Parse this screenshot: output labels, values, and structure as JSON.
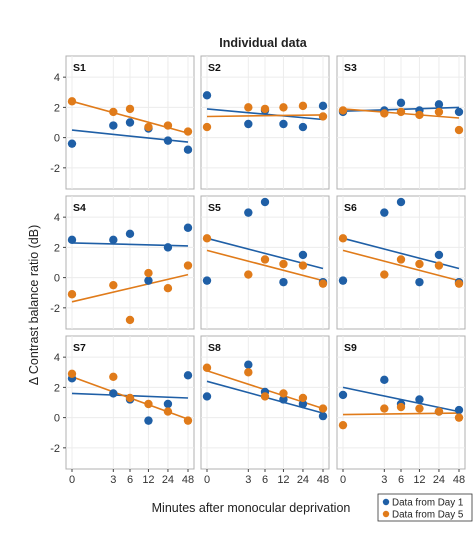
{
  "chart_data": {
    "type": "scatter",
    "title": "Individual data",
    "xlabel": "Minutes after monocular deprivation",
    "ylabel": "Δ Contrast balance ratio (dB)",
    "ylim": [
      -3.4,
      5.4
    ],
    "y_ticks": [
      -2,
      0,
      2,
      4
    ],
    "x_ticks": [
      0,
      3,
      6,
      12,
      24,
      48
    ],
    "x_tick_labels": [
      "0",
      "3",
      "6",
      "12",
      "24",
      "48"
    ],
    "x_scale": "log(x+1)",
    "grid": true,
    "legend_position": "bottom-right",
    "series_legend": [
      {
        "name": "Data from Day 1",
        "color": "#1f5fa6"
      },
      {
        "name": "Data from Day 5",
        "color": "#e07b1a"
      }
    ],
    "panels": [
      {
        "label": "S1",
        "day1": [
          [
            0,
            -0.4
          ],
          [
            3,
            0.8
          ],
          [
            6,
            1.0
          ],
          [
            12,
            0.6
          ],
          [
            24,
            -0.2
          ],
          [
            48,
            -0.8
          ]
        ],
        "day1_fit": [
          [
            0,
            0.5
          ],
          [
            48,
            -0.3
          ]
        ],
        "day5": [
          [
            0,
            2.4
          ],
          [
            3,
            1.7
          ],
          [
            6,
            1.9
          ],
          [
            12,
            0.7
          ],
          [
            24,
            0.8
          ],
          [
            48,
            0.4
          ]
        ],
        "day5_fit": [
          [
            0,
            2.4
          ],
          [
            48,
            0.3
          ]
        ]
      },
      {
        "label": "S2",
        "day1": [
          [
            0,
            2.8
          ],
          [
            3,
            0.9
          ],
          [
            6,
            1.8
          ],
          [
            12,
            0.9
          ],
          [
            24,
            0.7
          ],
          [
            48,
            2.1
          ]
        ],
        "day1_fit": [
          [
            0,
            1.9
          ],
          [
            48,
            1.2
          ]
        ],
        "day5": [
          [
            0,
            0.7
          ],
          [
            3,
            2.0
          ],
          [
            6,
            1.9
          ],
          [
            12,
            2.0
          ],
          [
            24,
            2.1
          ],
          [
            48,
            1.4
          ]
        ],
        "day5_fit": [
          [
            0,
            1.4
          ],
          [
            48,
            1.5
          ]
        ]
      },
      {
        "label": "S3",
        "day1": [
          [
            0,
            1.7
          ],
          [
            3,
            1.8
          ],
          [
            6,
            2.3
          ],
          [
            12,
            1.8
          ],
          [
            24,
            2.2
          ],
          [
            48,
            1.7
          ]
        ],
        "day1_fit": [
          [
            0,
            1.75
          ],
          [
            48,
            2.0
          ]
        ],
        "day5": [
          [
            0,
            1.8
          ],
          [
            3,
            1.6
          ],
          [
            6,
            1.7
          ],
          [
            12,
            1.5
          ],
          [
            24,
            1.7
          ],
          [
            48,
            0.5
          ]
        ],
        "day5_fit": [
          [
            0,
            1.9
          ],
          [
            48,
            1.3
          ]
        ]
      },
      {
        "label": "S4",
        "day1": [
          [
            0,
            2.5
          ],
          [
            3,
            2.5
          ],
          [
            6,
            2.9
          ],
          [
            12,
            -0.2
          ],
          [
            24,
            2.0
          ],
          [
            48,
            3.3
          ]
        ],
        "day1_fit": [
          [
            0,
            2.3
          ],
          [
            48,
            2.1
          ]
        ],
        "day5": [
          [
            0,
            -1.1
          ],
          [
            3,
            -0.5
          ],
          [
            6,
            -2.8
          ],
          [
            12,
            0.3
          ],
          [
            24,
            -0.7
          ],
          [
            48,
            0.8
          ]
        ],
        "day5_fit": [
          [
            0,
            -1.6
          ],
          [
            48,
            0.2
          ]
        ]
      },
      {
        "label": "S5",
        "day1": [
          [
            0,
            -0.2
          ],
          [
            3,
            4.3
          ],
          [
            6,
            5.0
          ],
          [
            12,
            -0.3
          ],
          [
            24,
            1.5
          ],
          [
            48,
            -0.3
          ]
        ],
        "day1_fit": [
          [
            0,
            2.6
          ],
          [
            48,
            0.6
          ]
        ],
        "day5": [
          [
            0,
            2.6
          ],
          [
            3,
            0.2
          ],
          [
            6,
            1.2
          ],
          [
            12,
            0.9
          ],
          [
            24,
            0.8
          ],
          [
            48,
            -0.4
          ]
        ],
        "day5_fit": [
          [
            0,
            1.8
          ],
          [
            48,
            -0.2
          ]
        ]
      },
      {
        "label": "S6",
        "day1": [
          [
            0,
            -0.2
          ],
          [
            3,
            4.3
          ],
          [
            6,
            5.0
          ],
          [
            12,
            -0.3
          ],
          [
            24,
            1.5
          ],
          [
            48,
            -0.3
          ]
        ],
        "day1_fit": [
          [
            0,
            2.6
          ],
          [
            48,
            0.6
          ]
        ],
        "day5": [
          [
            0,
            2.6
          ],
          [
            3,
            0.2
          ],
          [
            6,
            1.2
          ],
          [
            12,
            0.9
          ],
          [
            24,
            0.8
          ],
          [
            48,
            -0.4
          ]
        ],
        "day5_fit": [
          [
            0,
            1.8
          ],
          [
            48,
            -0.2
          ]
        ]
      },
      {
        "label": "S7",
        "day1": [
          [
            0,
            2.6
          ],
          [
            3,
            1.6
          ],
          [
            6,
            1.2
          ],
          [
            12,
            -0.2
          ],
          [
            24,
            0.9
          ],
          [
            48,
            2.8
          ]
        ],
        "day1_fit": [
          [
            0,
            1.6
          ],
          [
            48,
            1.3
          ]
        ],
        "day5": [
          [
            0,
            2.9
          ],
          [
            3,
            2.7
          ],
          [
            6,
            1.3
          ],
          [
            12,
            0.9
          ],
          [
            24,
            0.4
          ],
          [
            48,
            -0.2
          ]
        ],
        "day5_fit": [
          [
            0,
            2.7
          ],
          [
            48,
            -0.1
          ]
        ]
      },
      {
        "label": "S8",
        "day1": [
          [
            0,
            1.4
          ],
          [
            3,
            3.5
          ],
          [
            6,
            1.7
          ],
          [
            12,
            1.2
          ],
          [
            24,
            0.9
          ],
          [
            48,
            0.1
          ]
        ],
        "day1_fit": [
          [
            0,
            2.4
          ],
          [
            48,
            0.3
          ]
        ],
        "day5": [
          [
            0,
            3.3
          ],
          [
            3,
            3.0
          ],
          [
            6,
            1.4
          ],
          [
            12,
            1.6
          ],
          [
            24,
            1.3
          ],
          [
            48,
            0.6
          ]
        ],
        "day5_fit": [
          [
            0,
            3.1
          ],
          [
            48,
            0.6
          ]
        ]
      },
      {
        "label": "S9",
        "day1": [
          [
            0,
            1.5
          ],
          [
            3,
            2.5
          ],
          [
            6,
            0.9
          ],
          [
            12,
            1.2
          ],
          [
            24,
            0.4
          ],
          [
            48,
            0.5
          ]
        ],
        "day1_fit": [
          [
            0,
            2.0
          ],
          [
            48,
            0.4
          ]
        ],
        "day5": [
          [
            0,
            -0.5
          ],
          [
            3,
            0.6
          ],
          [
            6,
            0.7
          ],
          [
            12,
            0.6
          ],
          [
            24,
            0.4
          ],
          [
            48,
            0.0
          ]
        ],
        "day5_fit": [
          [
            0,
            0.2
          ],
          [
            48,
            0.3
          ]
        ]
      }
    ]
  }
}
